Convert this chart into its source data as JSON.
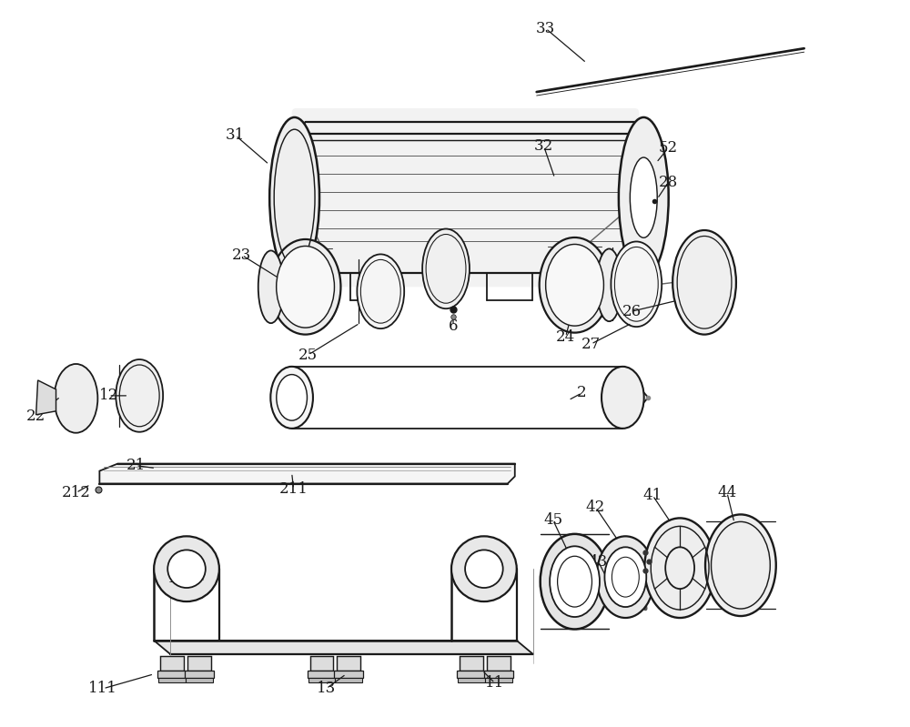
{
  "bg_color": "#ffffff",
  "line_color": "#1a1a1a",
  "lw": 1.3,
  "fs": 12,
  "fig_w": 10.0,
  "fig_h": 7.99
}
